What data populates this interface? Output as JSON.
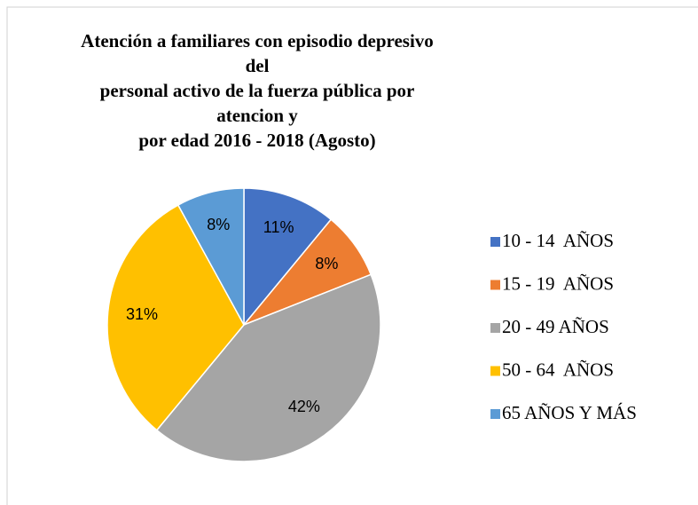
{
  "chart_data": {
    "type": "pie",
    "title": "Atención a familiares con episodio depresivo del\npersonal activo de la fuerza pública por atencion y\npor edad 2016 -  2018 (Agosto)",
    "categories": [
      "10 - 14  AÑOS",
      "15 - 19  AÑOS",
      "20 - 49 AÑOS",
      "50 - 64  AÑOS",
      "65 AÑOS Y MÁS"
    ],
    "values": [
      11,
      8,
      42,
      31,
      8
    ],
    "value_labels": [
      "11%",
      "8%",
      "42%",
      "31%",
      "8%"
    ],
    "colors": [
      "#4472c4",
      "#ed7d31",
      "#a5a5a5",
      "#ffc000",
      "#5b9bd5"
    ],
    "legend": "right"
  }
}
